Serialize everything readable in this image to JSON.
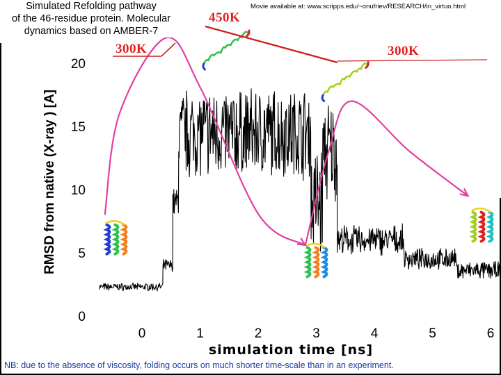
{
  "title": {
    "lines": [
      "Simulated Refolding pathway",
      "of the 46-residue protein. Molecular",
      "dynamics based on AMBER-7"
    ]
  },
  "movie_link": "Movie available at: www.scripps.edu/~onufriev/RESEARCH/in_virtuo.html",
  "temperature_labels": [
    {
      "text": "300K"
    },
    {
      "text": "450K"
    },
    {
      "text": "300K"
    }
  ],
  "footnote": "NB: due to the absence of viscosity, folding occurs on  much shorter time-scale  than in an experiment.",
  "colors": {
    "trace": "#000000",
    "pathway_arrow": "#e040a0",
    "temperature": "#e02020",
    "footnote": "#1a3a9e"
  },
  "chart_data": {
    "type": "line",
    "xlabel": "simulation time [ns]",
    "ylabel": "RMSD from native (X-ray ) [A]",
    "xlim": [
      -0.8,
      6.2
    ],
    "ylim": [
      0,
      20
    ],
    "x_ticks": [
      0,
      1,
      2,
      3,
      4,
      5,
      6
    ],
    "y_ticks": [
      0,
      5,
      10,
      15,
      20
    ],
    "grid": false,
    "segments": [
      {
        "x_start": -0.75,
        "x_end": 0.35,
        "mean": 2.3,
        "spread": 0.5
      },
      {
        "x_start": 0.35,
        "x_end": 0.52,
        "mean": 4.0,
        "spread": 0.8
      },
      {
        "x_start": 0.52,
        "x_end": 0.62,
        "mean": 9.0,
        "spread": 2.0
      },
      {
        "x_start": 0.62,
        "x_end": 2.9,
        "mean": 14.5,
        "spread": 6.0
      },
      {
        "x_start": 2.9,
        "x_end": 3.1,
        "mean": 9.0,
        "spread": 8.0
      },
      {
        "x_start": 3.1,
        "x_end": 3.35,
        "mean": 13.0,
        "spread": 7.0
      },
      {
        "x_start": 3.35,
        "x_end": 4.5,
        "mean": 6.0,
        "spread": 2.0
      },
      {
        "x_start": 4.5,
        "x_end": 5.4,
        "mean": 4.5,
        "spread": 1.4
      },
      {
        "x_start": 5.4,
        "x_end": 6.2,
        "mean": 3.6,
        "spread": 1.2
      }
    ],
    "pathway_arrows": [
      {
        "points": [
          [
            -0.65,
            8
          ],
          [
            -0.4,
            16
          ],
          [
            0.4,
            22
          ],
          [
            1.0,
            18
          ],
          [
            2.0,
            8
          ],
          [
            2.8,
            5.6
          ]
        ]
      },
      {
        "points": [
          [
            2.8,
            5.6
          ],
          [
            3.2,
            13
          ],
          [
            3.6,
            17
          ],
          [
            4.6,
            13
          ],
          [
            5.6,
            9.5
          ]
        ]
      }
    ],
    "protein_snapshots": [
      {
        "state": "folded",
        "x": -0.45,
        "y": 6
      },
      {
        "state": "unfolded",
        "x": 1.3,
        "y": 21
      },
      {
        "state": "unfolded",
        "x": 3.35,
        "y": 18.5
      },
      {
        "state": "folded",
        "x": 3.0,
        "y": 4.2
      },
      {
        "state": "folded",
        "x": 5.85,
        "y": 7
      }
    ]
  }
}
